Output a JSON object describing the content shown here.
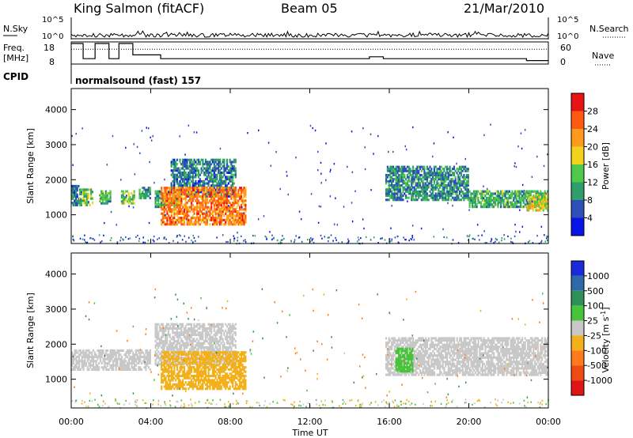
{
  "header": {
    "site": "King Salmon (fitACF)",
    "beam": "Beam 05",
    "date": "21/Mar/2010"
  },
  "top_panel": {
    "nsky_label": "N.Sky",
    "nsky_ticks": [
      "10^5",
      "10^0"
    ],
    "nsearch_label": "N.Search",
    "nsearch_ticks": [
      "10^5",
      "10^0"
    ],
    "freq_label": "Freq.",
    "freq_unit": "[MHz]",
    "freq_ticks": [
      "18",
      "8"
    ],
    "nave_label": "Nave",
    "nave_ticks": [
      "60",
      "0"
    ],
    "cpid_label": "CPID",
    "cpid_value": "normalsound (fast) 157"
  },
  "axes": {
    "ylabel": "Slant Range [km]",
    "xlabel": "Time UT",
    "y_ticks": [
      "1000",
      "2000",
      "3000",
      "4000"
    ],
    "x_ticks": [
      "00:00",
      "04:00",
      "08:00",
      "12:00",
      "16:00",
      "20:00",
      "00:00"
    ]
  },
  "power_scale": {
    "label": "Power [dB]",
    "ticks": [
      "4",
      "8",
      "12",
      "16",
      "20",
      "24",
      "28"
    ],
    "colors": [
      "#0a14e6",
      "#2f4fb8",
      "#2e9e6c",
      "#50c84a",
      "#f2d21a",
      "#ff9a1a",
      "#ff5a14",
      "#e81414"
    ]
  },
  "velocity_scale": {
    "label": "Velocity [m s",
    "label_sup": "-1",
    "label_end": "]",
    "ticks": [
      "1000",
      "500",
      "100",
      "25",
      "-25",
      "-100",
      "-500",
      "-1000"
    ],
    "colors": [
      "#1a2ad8",
      "#2e6aa8",
      "#2e9058",
      "#48c43a",
      "#c8c8c8",
      "#f2b01a",
      "#ff7a1a",
      "#f04a14",
      "#e01414"
    ]
  },
  "chart_data": [
    {
      "type": "heatmap",
      "name": "power",
      "x_unit": "hours UT",
      "xlim": [
        0,
        24
      ],
      "ylim": [
        180,
        4600
      ],
      "value_unit": "dB",
      "regions": [
        {
          "t": [
            0.0,
            0.4
          ],
          "r": [
            1250,
            1850
          ],
          "v": 8
        },
        {
          "t": [
            0.4,
            1.1
          ],
          "r": [
            1250,
            1750
          ],
          "v": 13
        },
        {
          "t": [
            1.4,
            2.0
          ],
          "r": [
            1300,
            1700
          ],
          "v": 12
        },
        {
          "t": [
            2.5,
            3.2
          ],
          "r": [
            1300,
            1700
          ],
          "v": 14
        },
        {
          "t": [
            3.4,
            4.0
          ],
          "r": [
            1450,
            1800
          ],
          "v": 10
        },
        {
          "t": [
            4.2,
            5.5
          ],
          "r": [
            1200,
            1700
          ],
          "v": 11
        },
        {
          "t": [
            5.0,
            8.3
          ],
          "r": [
            1500,
            2600
          ],
          "v": 8
        },
        {
          "t": [
            4.5,
            8.8
          ],
          "r": [
            700,
            1800
          ],
          "v": 24
        },
        {
          "t": [
            15.8,
            20.0
          ],
          "r": [
            1400,
            2400
          ],
          "v": 9
        },
        {
          "t": [
            20.0,
            24.0
          ],
          "r": [
            1200,
            1700
          ],
          "v": 12
        },
        {
          "t": [
            22.9,
            24.0
          ],
          "r": [
            1100,
            1600
          ],
          "v": 18
        }
      ]
    },
    {
      "type": "heatmap",
      "name": "velocity",
      "x_unit": "hours UT",
      "xlim": [
        0,
        24
      ],
      "ylim": [
        180,
        4600
      ],
      "value_unit": "m/s",
      "regions": [
        {
          "t": [
            0.0,
            4.0
          ],
          "r": [
            1250,
            1850
          ],
          "v": 0
        },
        {
          "t": [
            4.2,
            8.3
          ],
          "r": [
            1400,
            2600
          ],
          "v": 0
        },
        {
          "t": [
            4.5,
            8.8
          ],
          "r": [
            700,
            1800
          ],
          "v": -60
        },
        {
          "t": [
            15.8,
            24.0
          ],
          "r": [
            1100,
            2200
          ],
          "v": 0
        },
        {
          "t": [
            16.3,
            17.2
          ],
          "r": [
            1200,
            1900
          ],
          "v": 60
        }
      ]
    }
  ]
}
